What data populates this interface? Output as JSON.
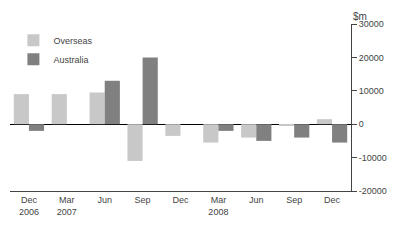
{
  "chart_data": {
    "type": "bar",
    "categories": [
      "Dec\n2006",
      "Mar\n2007",
      "Jun",
      "Sep",
      "Dec",
      "Mar\n2008",
      "Jun",
      "Sep",
      "Dec"
    ],
    "series": [
      {
        "name": "Overseas",
        "color": "#c8c8c8",
        "values": [
          9000,
          9000,
          9500,
          -11000,
          -3500,
          -5500,
          -4000,
          -500,
          1500
        ]
      },
      {
        "name": "Australia",
        "color": "#808080",
        "values": [
          -2000,
          0,
          13000,
          20000,
          0,
          -2000,
          -5000,
          -4000,
          -5500
        ]
      }
    ],
    "ylabel": "$m",
    "ylim": [
      -20000,
      30000
    ],
    "yticks": [
      -20000,
      -10000,
      0,
      10000,
      20000,
      30000
    ],
    "grid": false,
    "legend": "upper left"
  }
}
